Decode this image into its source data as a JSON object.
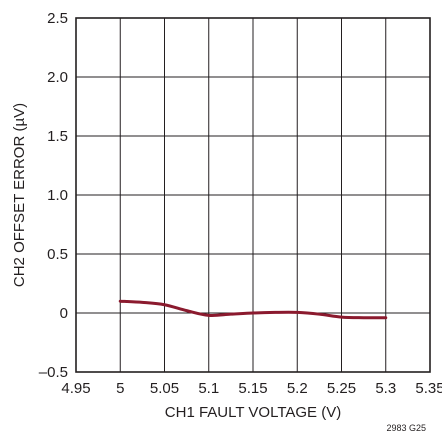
{
  "chart_data": {
    "type": "line",
    "title": "",
    "xlabel": "CH1 FAULT VOLTAGE (V)",
    "ylabel": "CH2 OFFSET ERROR (µV)",
    "xlim": [
      4.95,
      5.35
    ],
    "ylim": [
      -0.5,
      2.5
    ],
    "x_ticks": [
      "4.95",
      "5",
      "5.05",
      "5.1",
      "5.15",
      "5.2",
      "5.25",
      "5.3",
      "5.35"
    ],
    "y_ticks": [
      "–0.5",
      "0",
      "0.5",
      "1.0",
      "1.5",
      "2.0",
      "2.5"
    ],
    "grid": true,
    "legend": "none",
    "series": [
      {
        "color": "#8b1a2e",
        "x": [
          5.0,
          5.025,
          5.05,
          5.075,
          5.1,
          5.125,
          5.15,
          5.175,
          5.2,
          5.225,
          5.25,
          5.275,
          5.3
        ],
        "y": [
          0.1,
          0.09,
          0.07,
          0.02,
          -0.02,
          -0.01,
          0.0,
          0.005,
          0.005,
          -0.01,
          -0.035,
          -0.04,
          -0.04
        ]
      }
    ],
    "figure_id": "2983 G25"
  }
}
